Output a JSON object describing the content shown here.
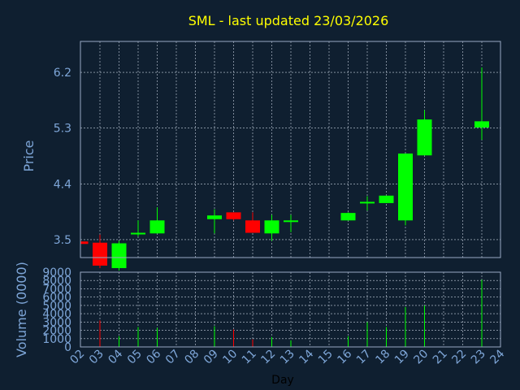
{
  "colors": {
    "background": "#0f1f30",
    "frame": "#9aaac4",
    "grid": "#c8d2e0",
    "title": "#ffff00",
    "axis_text": "#7ea6d8",
    "xlabel_text": "#000000",
    "up": "#00ff00",
    "down": "#ff0000"
  },
  "chart_data": [
    {
      "type": "candlestick",
      "title": "SML - last updated 23/03/2026",
      "ylabel": "Price",
      "ylim": [
        3.21,
        6.7
      ],
      "yticks": [
        "3.5",
        "4.4",
        "5.3",
        "6.2"
      ],
      "grid": true,
      "candles": [
        {
          "day": 2,
          "open": 3.47,
          "high": 3.47,
          "low": 3.43,
          "close": 3.43
        },
        {
          "day": 3,
          "open": 3.45,
          "high": 3.58,
          "low": 3.04,
          "close": 3.08
        },
        {
          "day": 4,
          "open": 3.04,
          "high": 3.48,
          "low": 3.0,
          "close": 3.44
        },
        {
          "day": 5,
          "open": 3.59,
          "high": 3.81,
          "low": 3.55,
          "close": 3.61
        },
        {
          "day": 6,
          "open": 3.6,
          "high": 4.02,
          "low": 3.6,
          "close": 3.81
        },
        {
          "day": 9,
          "open": 3.83,
          "high": 3.99,
          "low": 3.6,
          "close": 3.89
        },
        {
          "day": 10,
          "open": 3.94,
          "high": 3.94,
          "low": 3.81,
          "close": 3.83
        },
        {
          "day": 11,
          "open": 3.81,
          "high": 3.94,
          "low": 3.61,
          "close": 3.61
        },
        {
          "day": 12,
          "open": 3.6,
          "high": 3.9,
          "low": 3.48,
          "close": 3.81
        },
        {
          "day": 13,
          "open": 3.79,
          "high": 3.9,
          "low": 3.62,
          "close": 3.81
        },
        {
          "day": 16,
          "open": 3.81,
          "high": 3.94,
          "low": 3.81,
          "close": 3.93
        },
        {
          "day": 17,
          "open": 4.09,
          "high": 4.2,
          "low": 3.97,
          "close": 4.11
        },
        {
          "day": 18,
          "open": 4.09,
          "high": 4.21,
          "low": 4.09,
          "close": 4.21
        },
        {
          "day": 19,
          "open": 3.81,
          "high": 4.89,
          "low": 3.73,
          "close": 4.89
        },
        {
          "day": 20,
          "open": 4.86,
          "high": 5.59,
          "low": 4.86,
          "close": 5.44
        },
        {
          "day": 23,
          "open": 5.31,
          "high": 6.28,
          "low": 5.11,
          "close": 5.41
        }
      ]
    },
    {
      "type": "bar",
      "ylabel": "Volume (0000)",
      "xlabel": "Day",
      "ylim": [
        0,
        9000
      ],
      "yticks": [
        "0",
        "1000",
        "2000",
        "3000",
        "4000",
        "5000",
        "6000",
        "7000",
        "8000",
        "9000"
      ],
      "x_ticks": [
        "02",
        "03",
        "04",
        "05",
        "06",
        "07",
        "08",
        "09",
        "10",
        "11",
        "12",
        "13",
        "14",
        "15",
        "16",
        "17",
        "18",
        "19",
        "20",
        "21",
        "22",
        "23",
        "24"
      ],
      "bars": [
        {
          "day": 3,
          "value": 3200,
          "dir": "down"
        },
        {
          "day": 4,
          "value": 1300,
          "dir": "up"
        },
        {
          "day": 5,
          "value": 2400,
          "dir": "up"
        },
        {
          "day": 6,
          "value": 2300,
          "dir": "up"
        },
        {
          "day": 9,
          "value": 2500,
          "dir": "up"
        },
        {
          "day": 10,
          "value": 2100,
          "dir": "down"
        },
        {
          "day": 11,
          "value": 900,
          "dir": "down"
        },
        {
          "day": 12,
          "value": 1200,
          "dir": "up"
        },
        {
          "day": 13,
          "value": 800,
          "dir": "up"
        },
        {
          "day": 16,
          "value": 1300,
          "dir": "up"
        },
        {
          "day": 17,
          "value": 3000,
          "dir": "up"
        },
        {
          "day": 18,
          "value": 2400,
          "dir": "up"
        },
        {
          "day": 19,
          "value": 4800,
          "dir": "up"
        },
        {
          "day": 20,
          "value": 5000,
          "dir": "up"
        },
        {
          "day": 23,
          "value": 8100,
          "dir": "up"
        }
      ]
    }
  ]
}
